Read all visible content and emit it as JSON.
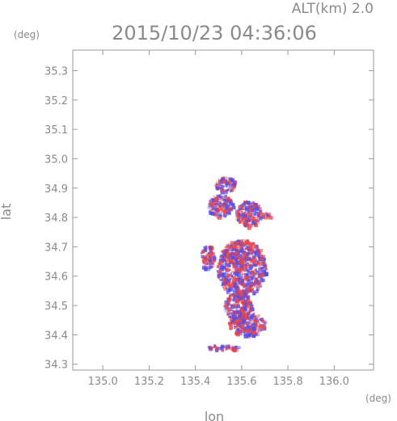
{
  "chart_data": {
    "type": "heatmap",
    "title": "2015/10/23 04:36:06",
    "subtitle": "ALT(km)  2.0",
    "xlabel": "lon",
    "ylabel": "lat",
    "x_unit": "(deg)",
    "y_unit": "(deg)",
    "xlim": [
      134.87,
      136.17
    ],
    "ylim": [
      34.28,
      35.37
    ],
    "x_ticks": [
      "135.0",
      "135.2",
      "135.4",
      "135.6",
      "135.8",
      "136.0"
    ],
    "y_ticks": [
      "34.3",
      "34.4",
      "34.5",
      "34.6",
      "34.7",
      "34.8",
      "34.9",
      "35.0",
      "35.1",
      "35.2",
      "35.3"
    ],
    "colors": {
      "positive": "#ee4444",
      "negative": "#4d4dee",
      "frame": "#9a9a9a",
      "text": "#8a8a8a"
    },
    "regions": [
      {
        "lon": [
          135.48,
          135.57
        ],
        "lat": [
          34.89,
          34.94
        ]
      },
      {
        "lon": [
          135.45,
          135.56
        ],
        "lat": [
          34.8,
          34.88
        ]
      },
      {
        "lon": [
          135.57,
          135.68
        ],
        "lat": [
          34.77,
          34.86
        ]
      },
      {
        "lon": [
          135.67,
          135.73
        ],
        "lat": [
          34.8,
          34.82
        ]
      },
      {
        "lon": [
          135.49,
          135.7
        ],
        "lat": [
          34.53,
          34.73
        ]
      },
      {
        "lon": [
          135.42,
          135.48
        ],
        "lat": [
          34.62,
          34.71
        ]
      },
      {
        "lon": [
          135.52,
          135.64
        ],
        "lat": [
          34.45,
          34.55
        ]
      },
      {
        "lon": [
          135.54,
          135.7
        ],
        "lat": [
          34.4,
          34.48
        ]
      },
      {
        "lon": [
          135.45,
          135.59
        ],
        "lat": [
          34.35,
          34.37
        ]
      }
    ]
  }
}
